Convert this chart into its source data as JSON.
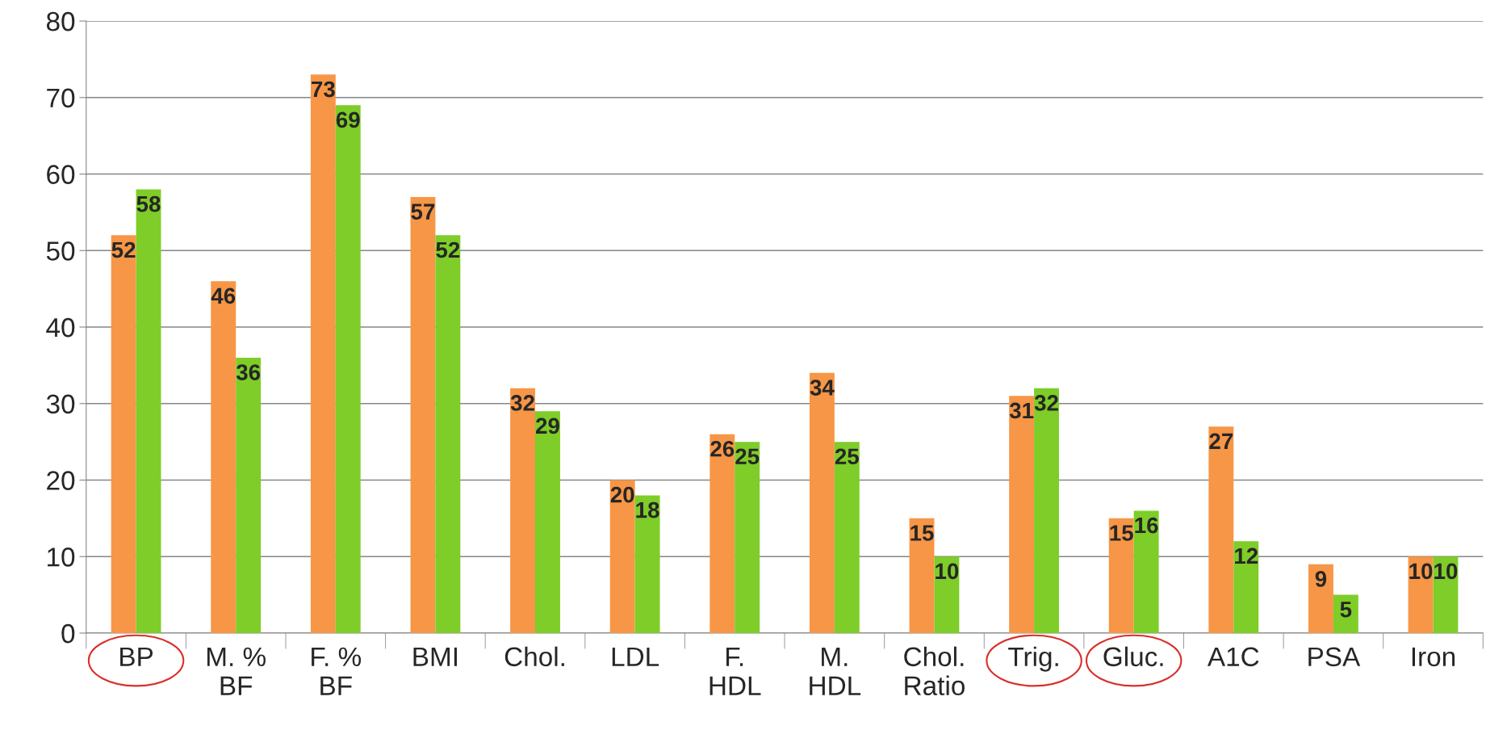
{
  "chart_data": {
    "type": "bar",
    "categories": [
      "BP",
      "M. %\nBF",
      "F. %\nBF",
      "BMI",
      "Chol.",
      "LDL",
      "F.\nHDL",
      "M.\nHDL",
      "Chol.\nRatio",
      "Trig.",
      "Gluc.",
      "A1C",
      "PSA",
      "Iron"
    ],
    "series": [
      {
        "color": "#f79646",
        "values": [
          52,
          46,
          73,
          57,
          32,
          20,
          26,
          34,
          15,
          31,
          15,
          27,
          9,
          10
        ]
      },
      {
        "color": "#7ecd28",
        "values": [
          58,
          36,
          69,
          52,
          29,
          18,
          25,
          25,
          10,
          32,
          16,
          12,
          5,
          10
        ]
      }
    ],
    "ylim": [
      0,
      80
    ],
    "yticks": [
      0,
      10,
      20,
      30,
      40,
      50,
      60,
      70,
      80
    ],
    "grid": "y",
    "data_labels": true,
    "legend": false
  }
}
